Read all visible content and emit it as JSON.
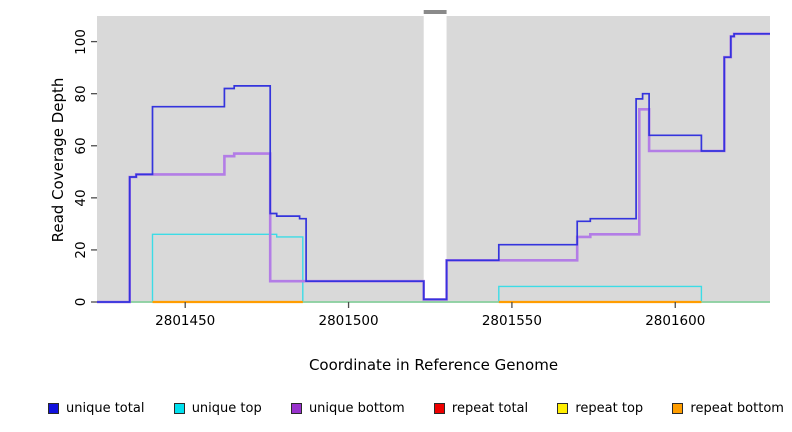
{
  "figure": {
    "x_axis_title": "Coordinate in Reference Genome",
    "y_axis_title": "Read Coverage Depth"
  },
  "colors": {
    "background": "#ffffff",
    "panel": "#d9d9d9",
    "gap_band": "#ffffff",
    "gap_cap": "#8a8a8a",
    "tick": "#4d4d4d",
    "baseline_green": "#94d6a2"
  },
  "chart_data": {
    "type": "line",
    "subtype": "step",
    "title": "",
    "xlabel": "Coordinate in Reference Genome",
    "ylabel": "Read Coverage Depth",
    "xlim": [
      2801423,
      2801629
    ],
    "ylim": [
      0,
      105
    ],
    "x_ticks": [
      2801450,
      2801500,
      2801550,
      2801600
    ],
    "y_ticks": [
      0,
      20,
      40,
      60,
      80,
      100
    ],
    "grid": false,
    "legend_position": "bottom",
    "panel_background": "#d9d9d9",
    "gap_region": {
      "x_start": 2801523,
      "x_end": 2801530
    },
    "baseline": {
      "name": "baseline",
      "color": "#94d6a2",
      "value": 0,
      "x_start": 2801423,
      "x_end": 2801629
    },
    "series": [
      {
        "name": "unique total",
        "color": "#3434dd",
        "legend_color": "#1111dd",
        "width": 1.7,
        "x_end": 2801629,
        "points": [
          [
            2801423,
            0
          ],
          [
            2801433,
            48
          ],
          [
            2801435,
            49
          ],
          [
            2801440,
            75
          ],
          [
            2801462,
            82
          ],
          [
            2801465,
            83
          ],
          [
            2801476,
            34
          ],
          [
            2801478,
            33
          ],
          [
            2801485,
            32
          ],
          [
            2801487,
            8
          ],
          [
            2801523,
            1
          ],
          [
            2801530,
            16
          ],
          [
            2801546,
            22
          ],
          [
            2801570,
            31
          ],
          [
            2801574,
            32
          ],
          [
            2801588,
            78
          ],
          [
            2801590,
            80
          ],
          [
            2801592,
            64
          ],
          [
            2801608,
            58
          ],
          [
            2801615,
            94
          ],
          [
            2801617,
            102
          ],
          [
            2801618,
            103
          ]
        ]
      },
      {
        "name": "unique top",
        "color": "#3cdce6",
        "legend_color": "#00e0ee",
        "width": 1.4,
        "x_end": 2801629,
        "points": [
          [
            2801423,
            0
          ],
          [
            2801440,
            26
          ],
          [
            2801478,
            25
          ],
          [
            2801486,
            0
          ],
          [
            2801546,
            6
          ],
          [
            2801608,
            0
          ]
        ]
      },
      {
        "name": "unique bottom",
        "color": "#b37de6",
        "legend_color": "#9832cc",
        "width": 2.6,
        "x_end": 2801629,
        "points": [
          [
            2801423,
            0
          ],
          [
            2801433,
            48
          ],
          [
            2801435,
            49
          ],
          [
            2801462,
            56
          ],
          [
            2801465,
            57
          ],
          [
            2801476,
            8
          ],
          [
            2801523,
            1
          ],
          [
            2801530,
            16
          ],
          [
            2801570,
            25
          ],
          [
            2801574,
            26
          ],
          [
            2801589,
            74
          ],
          [
            2801592,
            58
          ],
          [
            2801615,
            94
          ],
          [
            2801617,
            102
          ],
          [
            2801618,
            103
          ]
        ]
      },
      {
        "name": "repeat total",
        "color": "#dd0000",
        "legend_color": "#ee0000",
        "width": 1.2,
        "x_end": 2801629,
        "points": [
          [
            2801423,
            0
          ]
        ]
      },
      {
        "name": "repeat top",
        "color": "#ffee00",
        "legend_color": "#ffee00",
        "width": 1.2,
        "x_end": 2801629,
        "points": [
          [
            2801423,
            0
          ]
        ]
      },
      {
        "name": "repeat bottom",
        "color": "#ff9d00",
        "legend_color": "#ff9d00",
        "width": 2.2,
        "value": 0,
        "segments": [
          [
            2801440,
            2801486
          ],
          [
            2801546,
            2801608
          ]
        ]
      }
    ]
  },
  "legend": {
    "items": [
      {
        "label": "unique total",
        "color": "#1111dd"
      },
      {
        "label": "unique top",
        "color": "#00e0ee"
      },
      {
        "label": "unique bottom",
        "color": "#9832cc"
      },
      {
        "label": "repeat total",
        "color": "#ee0000"
      },
      {
        "label": "repeat top",
        "color": "#ffee00"
      },
      {
        "label": "repeat bottom",
        "color": "#ff9d00"
      }
    ]
  }
}
